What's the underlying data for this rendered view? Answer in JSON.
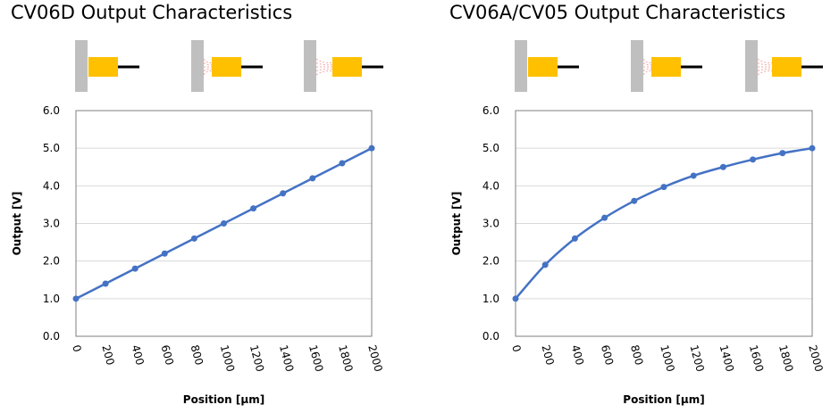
{
  "titles": {
    "left": "CV06D Output Characteristics",
    "right": "CV06A/CV05 Output Characteristics"
  },
  "colors": {
    "series": "#4472C4",
    "sensor_body": "#FFC000",
    "wall": "#BFBFBF",
    "field_lines": "#F4A6A6",
    "grid": "#D9D9D9"
  },
  "chart_data": [
    {
      "type": "line",
      "title": "CV06D Output Characteristics",
      "xlabel": "Position [µm]",
      "ylabel": "Output [V]",
      "x": [
        0,
        200,
        400,
        600,
        800,
        1000,
        1200,
        1400,
        1600,
        1800,
        2000
      ],
      "series": [
        {
          "name": "CV06D",
          "values": [
            1.0,
            1.4,
            1.8,
            2.2,
            2.6,
            3.0,
            3.4,
            3.8,
            4.2,
            4.6,
            5.0
          ]
        }
      ],
      "xlim": [
        0,
        2000
      ],
      "ylim": [
        0,
        6
      ],
      "xticks": [
        "0",
        "200",
        "400",
        "600",
        "800",
        "1000",
        "1200",
        "1400",
        "1600",
        "1800",
        "2000"
      ],
      "yticks": [
        "0.0",
        "1.0",
        "2.0",
        "3.0",
        "4.0",
        "5.0",
        "6.0"
      ],
      "grid": true
    },
    {
      "type": "line",
      "title": "CV06A/CV05 Output Characteristics",
      "xlabel": "Position [µm]",
      "ylabel": "Output [V]",
      "x": [
        0,
        200,
        400,
        600,
        800,
        1000,
        1200,
        1400,
        1600,
        1800,
        2000
      ],
      "series": [
        {
          "name": "CV06A/CV05",
          "values": [
            1.0,
            1.9,
            2.6,
            3.15,
            3.6,
            3.97,
            4.27,
            4.5,
            4.7,
            4.87,
            5.0
          ]
        }
      ],
      "xlim": [
        0,
        2000
      ],
      "ylim": [
        0,
        6
      ],
      "xticks": [
        "0",
        "200",
        "400",
        "600",
        "800",
        "1000",
        "1200",
        "1400",
        "1600",
        "1800",
        "2000"
      ],
      "yticks": [
        "0.0",
        "1.0",
        "2.0",
        "3.0",
        "4.0",
        "5.0",
        "6.0"
      ],
      "grid": true
    }
  ]
}
